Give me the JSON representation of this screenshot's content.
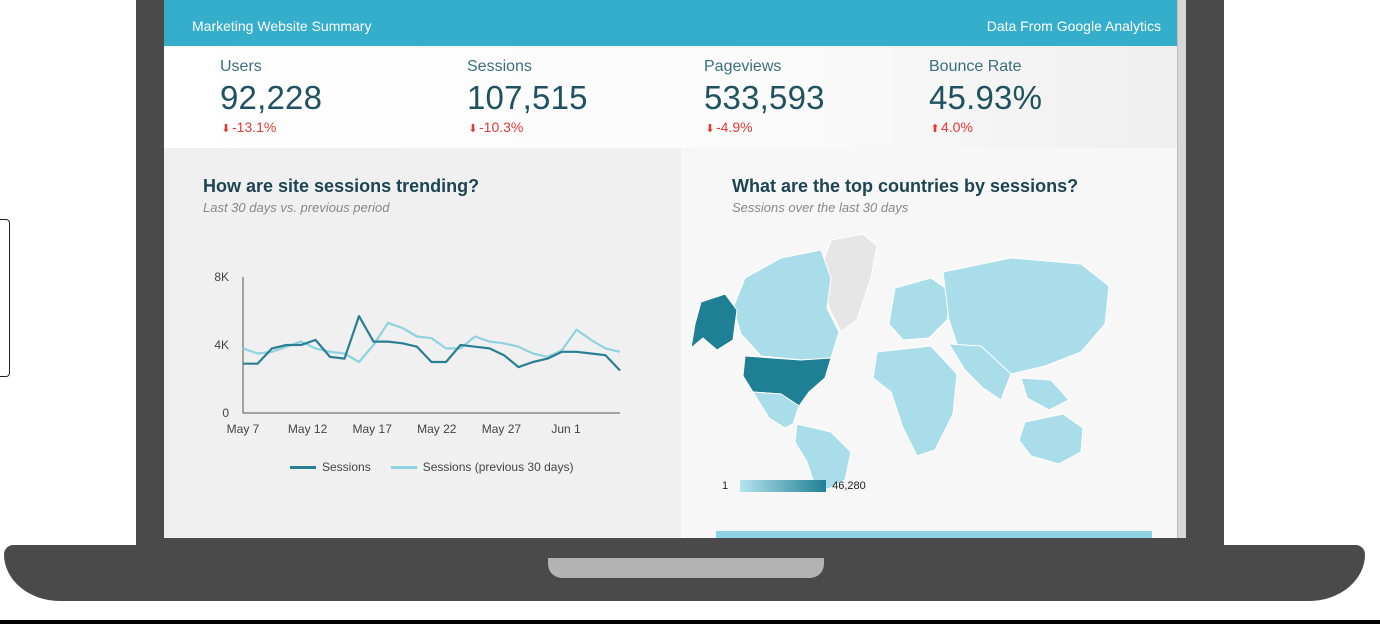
{
  "header": {
    "title": "Marketing Website Summary",
    "source": "Data From Google Analytics"
  },
  "kpis": [
    {
      "label": "Users",
      "value": "92,228",
      "delta": "-13.1%",
      "direction": "down"
    },
    {
      "label": "Sessions",
      "value": "107,515",
      "delta": "-10.3%",
      "direction": "down"
    },
    {
      "label": "Pageviews",
      "value": "533,593",
      "delta": "-4.9%",
      "direction": "down"
    },
    {
      "label": "Bounce Rate",
      "value": "45.93%",
      "delta": "4.0%",
      "direction": "up"
    }
  ],
  "colors": {
    "accent": "#35aecc",
    "sessions": "#2a7f94",
    "previous": "#8fd2e0",
    "negative": "#e53935"
  },
  "trend": {
    "title": "How are site sessions trending?",
    "subtitle": "Last 30 days vs. previous period",
    "chart_data": {
      "type": "line",
      "x_tick_labels": [
        "May 7",
        "May 12",
        "May 17",
        "May 22",
        "May 27",
        "Jun 1"
      ],
      "y_tick_labels": [
        "0",
        "4K",
        "8K"
      ],
      "ylim": [
        0,
        8000
      ],
      "series": [
        {
          "name": "Sessions",
          "values": [
            2900,
            2900,
            3800,
            4000,
            4000,
            4300,
            3300,
            3200,
            5700,
            4200,
            4200,
            4100,
            3900,
            3000,
            3000,
            4000,
            3900,
            3800,
            3400,
            2700,
            3000,
            3200,
            3600,
            3600,
            3500,
            3400,
            2500
          ]
        },
        {
          "name": "Sessions (previous 30 days)",
          "values": [
            3800,
            3500,
            3600,
            3900,
            4200,
            3800,
            3600,
            3500,
            3000,
            4000,
            5300,
            5000,
            4500,
            4400,
            3800,
            3800,
            4500,
            4200,
            4100,
            3900,
            3500,
            3300,
            3700,
            4900,
            4300,
            3800,
            3600
          ]
        }
      ]
    }
  },
  "countries": {
    "title": "What are the top countries by sessions?",
    "subtitle": "Sessions over the last 30 days",
    "scale_min": "1",
    "scale_max": "46,280"
  }
}
